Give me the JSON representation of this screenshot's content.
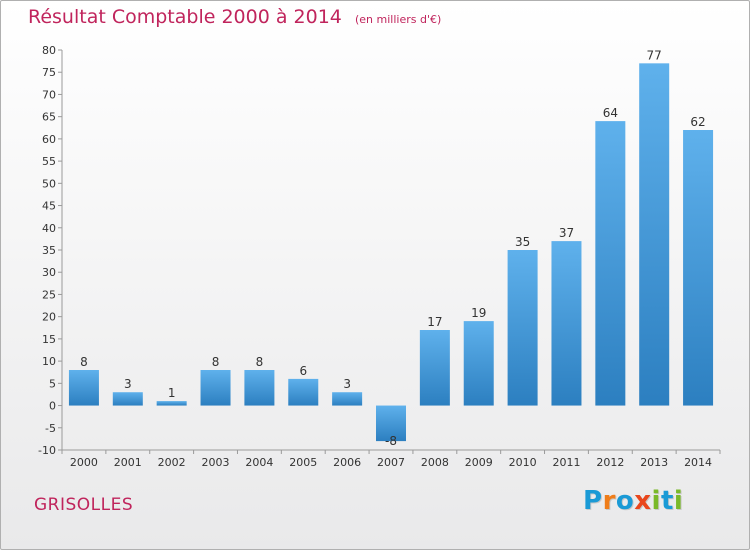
{
  "title": {
    "main": "Résultat Comptable 2000 à 2014",
    "unit": "(en milliers d'€)"
  },
  "place": "GRISOLLES",
  "logo": {
    "text": "Proxiti",
    "letters": [
      {
        "ch": "P",
        "color": "#1a9ad6"
      },
      {
        "ch": "r",
        "color": "#ef7d1a"
      },
      {
        "ch": "o",
        "color": "#1a9ad6"
      },
      {
        "ch": "x",
        "color": "#e9461c"
      },
      {
        "ch": "i",
        "color": "#7ab929"
      },
      {
        "ch": "t",
        "color": "#1a9ad6"
      },
      {
        "ch": "i",
        "color": "#7ab929"
      }
    ]
  },
  "colors": {
    "bar_light": "#5fb1ec",
    "bar_dark": "#2c7fc0",
    "title": "#c0245c"
  },
  "chart_data": {
    "type": "bar",
    "categories": [
      "2000",
      "2001",
      "2002",
      "2003",
      "2004",
      "2005",
      "2006",
      "2007",
      "2008",
      "2009",
      "2010",
      "2011",
      "2012",
      "2013",
      "2014"
    ],
    "values": [
      8,
      3,
      1,
      8,
      8,
      6,
      3,
      -8,
      17,
      19,
      35,
      37,
      64,
      77,
      62
    ],
    "ylim": [
      -10,
      80
    ],
    "yticks": [
      -10,
      -5,
      0,
      5,
      10,
      15,
      20,
      25,
      30,
      35,
      40,
      45,
      50,
      55,
      60,
      65,
      70,
      75,
      80
    ],
    "grid": false,
    "xlabel": "",
    "ylabel": ""
  }
}
